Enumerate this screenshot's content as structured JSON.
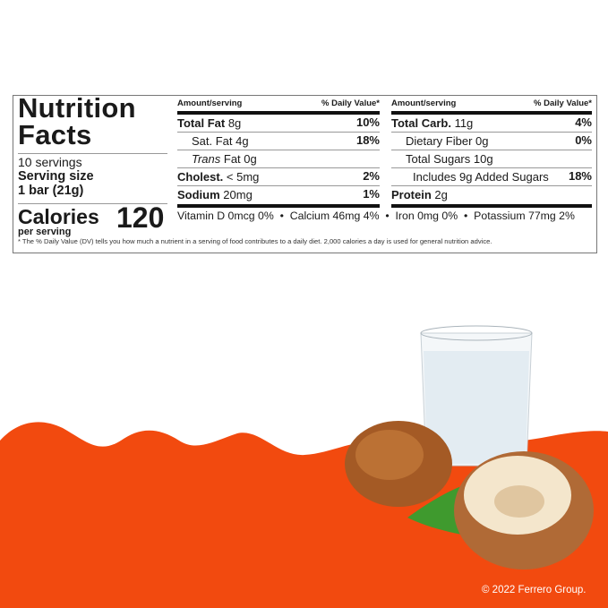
{
  "label": {
    "title_line1": "Nutrition",
    "title_line2": "Facts",
    "servings": "10 servings",
    "serving_size_label": "Serving size",
    "serving_size_value": "1 bar (21g)",
    "calories_label": "Calories",
    "calories_value": "120",
    "per_serving": "per serving",
    "amount_header": "Amount/serving",
    "dv_header": "% Daily Value*",
    "left_rows": [
      {
        "name": "Total Fat",
        "amount": "8g",
        "dv": "10%",
        "bold": true
      },
      {
        "name": "Sat. Fat",
        "amount": "4g",
        "dv": "18%",
        "bold": false
      },
      {
        "name": "Trans",
        "amount": "Fat 0g",
        "dv": "",
        "bold": false
      },
      {
        "name": "Cholest.",
        "amount": "< 5mg",
        "dv": "2%",
        "bold": true
      },
      {
        "name": "Sodium",
        "amount": "20mg",
        "dv": "1%",
        "bold": true
      }
    ],
    "right_rows": [
      {
        "name": "Total Carb.",
        "amount": "11g",
        "dv": "4%",
        "bold": true
      },
      {
        "name": "Dietary Fiber",
        "amount": "0g",
        "dv": "0%",
        "bold": false
      },
      {
        "name": "Total Sugars",
        "amount": "10g",
        "dv": "",
        "bold": false
      },
      {
        "name": "Includes 9g Added Sugars",
        "amount": "",
        "dv": "18%",
        "bold": false
      },
      {
        "name": "Protein",
        "amount": "2g",
        "dv": "",
        "bold": true
      }
    ],
    "vitamins": "Vitamin D 0mcg 0%  •  Calcium 46mg 4%  •  Iron 0mg 0%  •  Potassium 77mg 2%",
    "footnote": "* The % Daily Value (DV) tells you how much a nutrient in a serving of food contributes to a daily diet. 2,000 calories a day is used for general nutrition advice."
  },
  "copyright": "© 2022 Ferrero Group.",
  "colors": {
    "accent": "#f24a0f",
    "milk": "#e6eef4",
    "hazelnut": "#a45a25"
  }
}
